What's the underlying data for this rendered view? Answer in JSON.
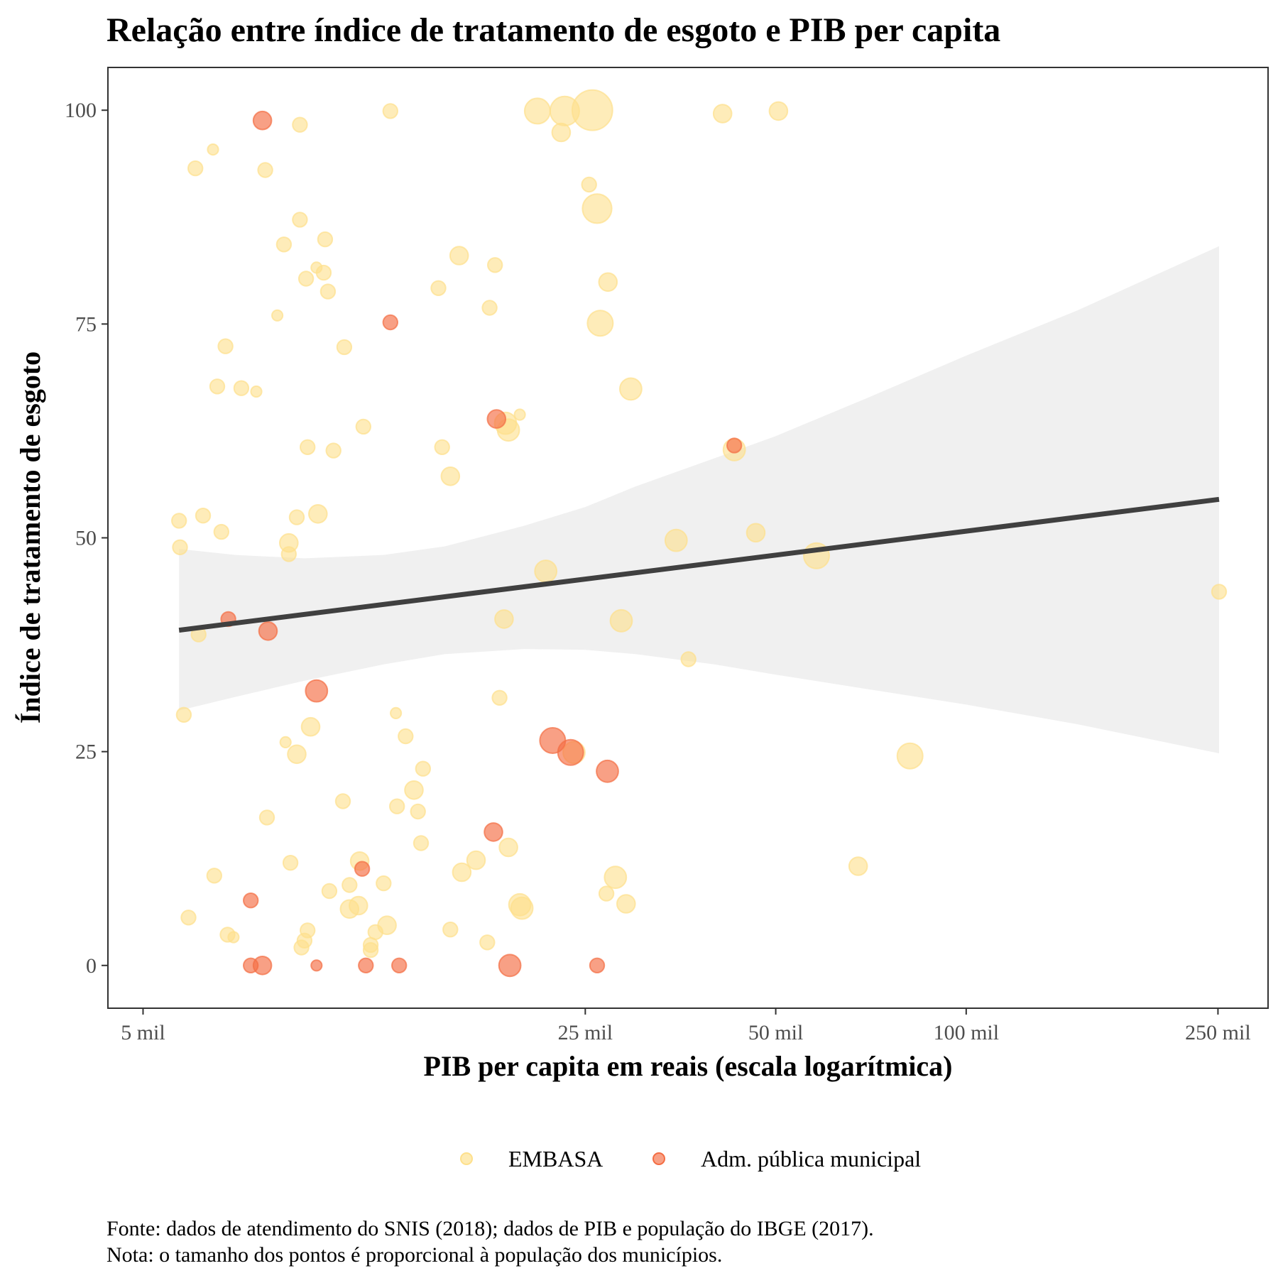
{
  "chart_data": {
    "type": "scatter",
    "title": "Relação entre índice de tratamento de esgoto e PIB per capita",
    "xlabel": "PIB per capita em reais (escala logarítmica)",
    "ylabel": "Índice de tratamento de esgoto",
    "x_scale": "log",
    "xlim": [
      4400,
      300000
    ],
    "ylim": [
      -5,
      105
    ],
    "x_ticks": [
      {
        "value": 5000,
        "label": "5 mil"
      },
      {
        "value": 25000,
        "label": "25 mil"
      },
      {
        "value": 50000,
        "label": "50 mil"
      },
      {
        "value": 100000,
        "label": "100 mil"
      },
      {
        "value": 250000,
        "label": "250 mil"
      }
    ],
    "y_ticks": [
      {
        "value": 0,
        "label": "0"
      },
      {
        "value": 25,
        "label": "25"
      },
      {
        "value": 50,
        "label": "50"
      },
      {
        "value": 75,
        "label": "75"
      },
      {
        "value": 100,
        "label": "100"
      }
    ],
    "grid": false,
    "legend_position": "bottom",
    "size_note": "proporcional à população",
    "series": [
      {
        "name": "EMBASA",
        "color": "#FEE08B",
        "points": [
          [
            5700,
            52
          ],
          [
            5720,
            48.9
          ],
          [
            6050,
            93.2
          ],
          [
            6220,
            52.6
          ],
          [
            6120,
            38.7
          ],
          [
            5800,
            29.3
          ],
          [
            5900,
            5.6
          ],
          [
            6450,
            95.4
          ],
          [
            6550,
            67.7
          ],
          [
            6650,
            50.7
          ],
          [
            6750,
            72.4
          ],
          [
            6800,
            3.6
          ],
          [
            6950,
            3.3
          ],
          [
            7150,
            67.5
          ],
          [
            6480,
            10.5
          ],
          [
            7550,
            67.1
          ],
          [
            7800,
            93
          ],
          [
            7850,
            17.3
          ],
          [
            8150,
            76
          ],
          [
            8350,
            84.3
          ],
          [
            8400,
            26.1
          ],
          [
            8500,
            49.4
          ],
          [
            8500,
            48.1
          ],
          [
            8550,
            12
          ],
          [
            8750,
            52.4
          ],
          [
            8750,
            24.7
          ],
          [
            8850,
            98.3
          ],
          [
            8850,
            87.2
          ],
          [
            8900,
            2.1
          ],
          [
            9000,
            2.9
          ],
          [
            9050,
            80.3
          ],
          [
            9100,
            60.6
          ],
          [
            9200,
            27.9
          ],
          [
            9100,
            4.1
          ],
          [
            9400,
            81.6
          ],
          [
            9450,
            52.8
          ],
          [
            9650,
            81
          ],
          [
            9700,
            84.9
          ],
          [
            9800,
            78.8
          ],
          [
            9850,
            8.7
          ],
          [
            10000,
            60.2
          ],
          [
            10350,
            19.2
          ],
          [
            10400,
            72.3
          ],
          [
            10600,
            9.4
          ],
          [
            10600,
            6.6
          ],
          [
            11000,
            12.2
          ],
          [
            10950,
            7
          ],
          [
            11150,
            63
          ],
          [
            11450,
            1.8
          ],
          [
            11450,
            2.4
          ],
          [
            11650,
            3.9
          ],
          [
            12000,
            9.6
          ],
          [
            12150,
            4.7
          ],
          [
            12300,
            99.9
          ],
          [
            12550,
            29.5
          ],
          [
            12600,
            18.6
          ],
          [
            13000,
            26.8
          ],
          [
            13400,
            20.5
          ],
          [
            13600,
            18
          ],
          [
            13750,
            14.3
          ],
          [
            13850,
            23
          ],
          [
            14650,
            79.2
          ],
          [
            14850,
            60.6
          ],
          [
            15300,
            57.2
          ],
          [
            15300,
            4.2
          ],
          [
            15800,
            83
          ],
          [
            15950,
            10.9
          ],
          [
            16800,
            12.3
          ],
          [
            17500,
            2.7
          ],
          [
            17650,
            76.9
          ],
          [
            18000,
            81.9
          ],
          [
            18300,
            31.3
          ],
          [
            18600,
            40.5
          ],
          [
            18700,
            63.4
          ],
          [
            18900,
            62.6
          ],
          [
            18900,
            13.8
          ],
          [
            19700,
            64.4
          ],
          [
            19700,
            7.1
          ],
          [
            19850,
            6.7
          ],
          [
            21000,
            99.9
          ],
          [
            21650,
            46.1
          ],
          [
            22900,
            97.4
          ],
          [
            23200,
            99.9
          ],
          [
            24000,
            24.9
          ],
          [
            25350,
            91.3
          ],
          [
            25650,
            100
          ],
          [
            26100,
            88.5
          ],
          [
            26400,
            75.1
          ],
          [
            27000,
            8.4
          ],
          [
            27150,
            79.9
          ],
          [
            27900,
            10.3
          ],
          [
            28500,
            40.3
          ],
          [
            29000,
            7.2
          ],
          [
            29500,
            67.4
          ],
          [
            34800,
            49.7
          ],
          [
            36400,
            35.8
          ],
          [
            41200,
            99.6
          ],
          [
            43000,
            60.3
          ],
          [
            46500,
            50.6
          ],
          [
            50500,
            99.9
          ],
          [
            58000,
            47.9
          ],
          [
            67500,
            11.6
          ],
          [
            81500,
            24.5
          ],
          [
            251000,
            43.7
          ]
        ],
        "point_sizes": [
          2,
          2,
          2,
          2,
          2,
          2,
          2,
          1,
          2,
          2,
          2,
          2,
          1,
          2,
          2,
          1,
          2,
          2,
          1,
          2,
          1,
          3,
          2,
          2,
          2,
          3,
          2,
          2,
          2,
          2,
          2,
          2,
          3,
          2,
          1,
          3,
          2,
          2,
          2,
          2,
          2,
          2,
          2,
          2,
          3,
          3,
          3,
          2,
          2,
          2,
          2,
          2,
          3,
          2,
          1,
          2,
          2,
          3,
          2,
          2,
          2,
          2,
          2,
          3,
          2,
          3,
          3,
          3,
          2,
          2,
          2,
          2,
          3,
          4,
          4,
          3,
          1,
          4,
          4,
          5,
          4,
          3,
          6,
          4,
          2,
          9,
          6,
          5,
          2,
          3,
          4,
          4,
          3,
          4,
          4,
          2,
          3,
          4,
          3,
          3,
          5,
          3,
          5,
          2
        ]
      },
      {
        "name": "Adm. pública municipal",
        "color": "#F46D43",
        "points": [
          [
            6820,
            40.5
          ],
          [
            7400,
            7.6
          ],
          [
            7400,
            0
          ],
          [
            7720,
            98.8
          ],
          [
            7720,
            0
          ],
          [
            7880,
            39.1
          ],
          [
            9400,
            32.1
          ],
          [
            9400,
            0
          ],
          [
            11100,
            11.3
          ],
          [
            11250,
            0
          ],
          [
            12300,
            75.2
          ],
          [
            12700,
            0
          ],
          [
            17900,
            15.6
          ],
          [
            18100,
            63.9
          ],
          [
            19000,
            0
          ],
          [
            22200,
            26.3
          ],
          [
            23700,
            24.9
          ],
          [
            26100,
            0
          ],
          [
            27100,
            22.7
          ],
          [
            43000,
            60.8
          ]
        ],
        "point_sizes": [
          2,
          2,
          2,
          3,
          3,
          3,
          4,
          1,
          2,
          2,
          2,
          2,
          3,
          3,
          4,
          5,
          5,
          2,
          4,
          2
        ]
      }
    ],
    "trend_line": {
      "x": [
        5700,
        251000
      ],
      "y": [
        39.2,
        54.5
      ],
      "color": "#404040"
    },
    "confidence_band": {
      "x": [
        5700,
        7000,
        9000,
        12000,
        15000,
        20000,
        25000,
        30000,
        40000,
        50000,
        70000,
        100000,
        150000,
        251000
      ],
      "lower": [
        29.8,
        31.4,
        33.3,
        35.2,
        36.4,
        37.0,
        36.9,
        36.4,
        35.2,
        34.0,
        32.3,
        30.5,
        28.2,
        24.8
      ],
      "upper": [
        48.7,
        48.0,
        47.6,
        48.0,
        49.0,
        51.4,
        53.6,
        56.0,
        59.3,
        61.9,
        66.4,
        71.3,
        76.6,
        84.1
      ],
      "color": "#d9d9d9"
    }
  },
  "caption": {
    "source": "Fonte: dados de atendimento do SNIS (2018); dados de PIB e população do IBGE (2017).",
    "note": "Nota: o tamanho dos pontos é proporcional à população dos municípios."
  }
}
